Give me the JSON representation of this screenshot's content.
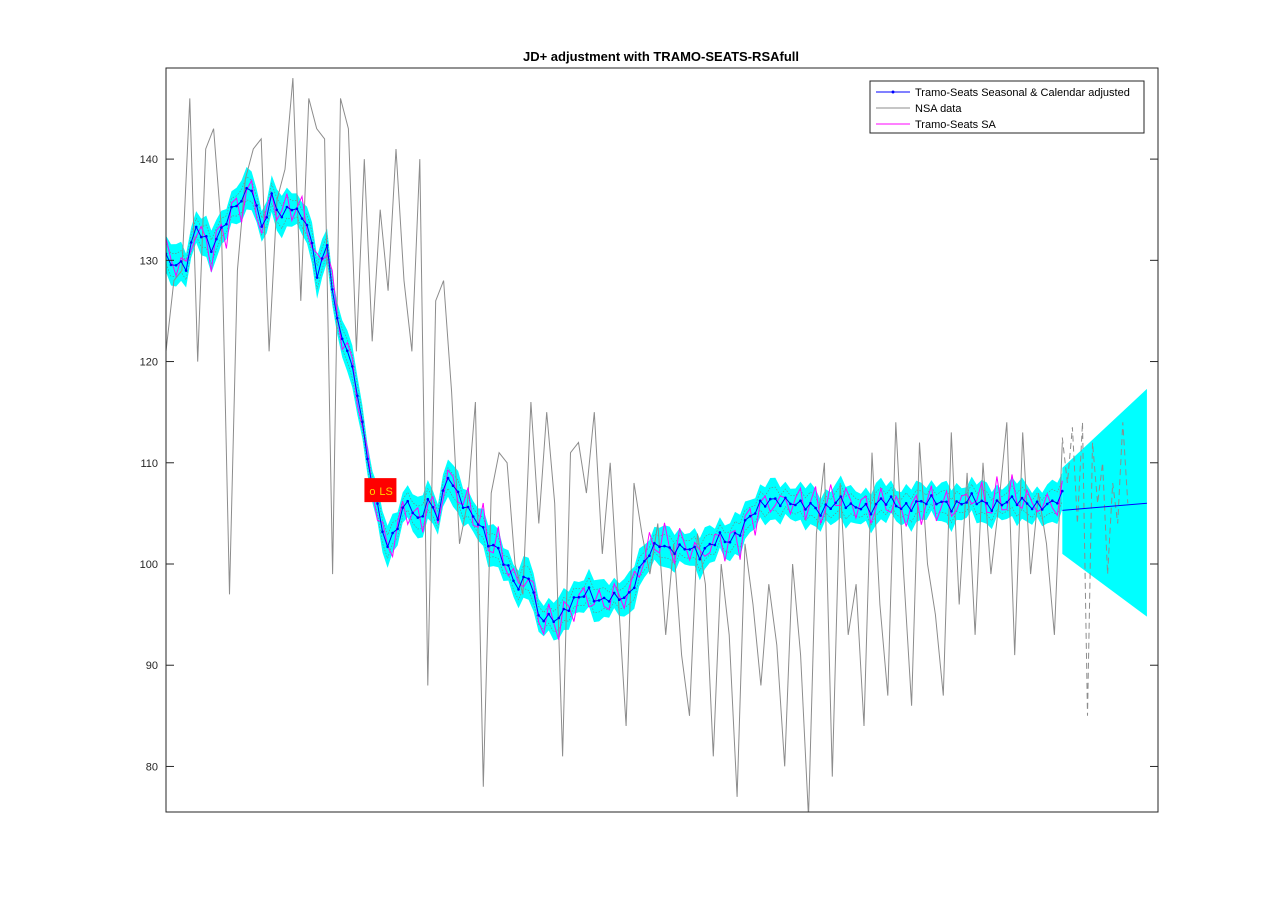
{
  "chart_data": {
    "type": "line",
    "title": "JD+ adjustment with TRAMO-SEATS-RSAfull",
    "xlabel": "",
    "ylabel": "",
    "ylim": [
      75.5,
      149
    ],
    "yticks": [
      80,
      90,
      100,
      110,
      120,
      130,
      140
    ],
    "xlim": [
      0,
      197
    ],
    "grid": false,
    "legend_position": "top-right",
    "n_observations": 179,
    "forecast_horizon": 12,
    "series": [
      {
        "name": "Tramo-Seats Seasonal & Calendar adjusted",
        "color": "#0000ff",
        "style": "solid-dot",
        "anchors": [
          [
            0,
            130.4
          ],
          [
            4,
            129.3
          ],
          [
            6,
            133
          ],
          [
            9,
            131.5
          ],
          [
            12,
            134
          ],
          [
            15,
            135.8
          ],
          [
            17,
            137.5
          ],
          [
            19,
            133.5
          ],
          [
            21,
            136
          ],
          [
            23,
            134
          ],
          [
            25,
            135.5
          ],
          [
            28,
            134
          ],
          [
            30,
            128.5
          ],
          [
            32,
            131
          ],
          [
            34,
            124
          ],
          [
            36,
            121.5
          ],
          [
            38,
            117
          ],
          [
            40,
            110
          ],
          [
            42,
            105.5
          ],
          [
            44,
            102
          ],
          [
            46,
            104
          ],
          [
            48,
            106
          ],
          [
            50,
            104
          ],
          [
            52,
            106.5
          ],
          [
            54,
            105
          ],
          [
            56,
            108.5
          ],
          [
            58,
            106.5
          ],
          [
            60,
            105.5
          ],
          [
            62,
            104.5
          ],
          [
            64,
            102
          ],
          [
            66,
            101
          ],
          [
            68,
            99.5
          ],
          [
            70,
            98
          ],
          [
            72,
            99
          ],
          [
            74,
            94.5
          ],
          [
            76,
            94.5
          ],
          [
            78,
            95
          ],
          [
            80,
            96
          ],
          [
            82,
            96.5
          ],
          [
            84,
            97
          ],
          [
            86,
            96.5
          ],
          [
            88,
            97
          ],
          [
            90,
            96.5
          ],
          [
            92,
            96.5
          ],
          [
            94,
            99.5
          ],
          [
            96,
            101.5
          ],
          [
            98,
            102
          ],
          [
            100,
            101
          ],
          [
            102,
            101.5
          ],
          [
            104,
            102
          ],
          [
            106,
            101
          ],
          [
            108,
            101.5
          ],
          [
            110,
            102.5
          ],
          [
            112,
            102.5
          ],
          [
            114,
            103.5
          ],
          [
            116,
            104.5
          ],
          [
            118,
            105.5
          ],
          [
            120,
            106.5
          ],
          [
            122,
            106.5
          ],
          [
            124,
            106
          ],
          [
            126,
            105.5
          ],
          [
            128,
            105.8
          ],
          [
            130,
            105.5
          ],
          [
            132,
            105.8
          ],
          [
            134,
            106
          ],
          [
            136,
            105.5
          ],
          [
            138,
            106
          ],
          [
            140,
            105.5
          ],
          [
            142,
            106
          ],
          [
            144,
            106
          ],
          [
            146,
            105.8
          ],
          [
            148,
            106
          ],
          [
            150,
            106
          ],
          [
            152,
            106
          ],
          [
            154,
            106.2
          ],
          [
            156,
            106
          ],
          [
            158,
            106
          ],
          [
            160,
            106.2
          ],
          [
            162,
            106
          ],
          [
            164,
            106
          ],
          [
            166,
            106.2
          ],
          [
            168,
            106
          ],
          [
            170,
            106
          ],
          [
            172,
            106
          ],
          [
            174,
            106
          ],
          [
            176,
            105.8
          ],
          [
            178,
            106.5
          ]
        ],
        "wiggle": 0.8
      },
      {
        "name": "NSA data",
        "color": "#8c8c8c",
        "style": "solid",
        "anchors": [
          [
            0,
            121
          ],
          [
            1,
            128
          ],
          [
            2,
            129
          ],
          [
            3,
            146
          ],
          [
            4,
            120
          ],
          [
            5,
            141
          ],
          [
            6,
            143
          ],
          [
            7,
            133
          ],
          [
            8,
            97
          ],
          [
            9,
            129
          ],
          [
            10,
            138
          ],
          [
            11,
            141
          ],
          [
            12,
            142
          ],
          [
            13,
            121
          ],
          [
            14,
            136
          ],
          [
            15,
            139
          ],
          [
            16,
            148
          ],
          [
            17,
            126
          ],
          [
            18,
            146
          ],
          [
            19,
            143
          ],
          [
            20,
            142
          ],
          [
            21,
            99
          ],
          [
            22,
            146
          ],
          [
            23,
            143
          ],
          [
            24,
            121
          ],
          [
            25,
            140
          ],
          [
            26,
            122
          ],
          [
            27,
            135
          ],
          [
            28,
            127
          ],
          [
            29,
            141
          ],
          [
            30,
            128
          ],
          [
            31,
            121
          ],
          [
            32,
            140
          ],
          [
            33,
            88
          ],
          [
            34,
            126
          ],
          [
            35,
            128
          ],
          [
            36,
            117
          ],
          [
            37,
            102
          ],
          [
            38,
            106
          ],
          [
            39,
            116
          ],
          [
            40,
            78
          ],
          [
            41,
            107
          ],
          [
            42,
            111
          ],
          [
            43,
            110
          ],
          [
            44,
            100
          ],
          [
            45,
            97
          ],
          [
            46,
            116
          ],
          [
            47,
            104
          ],
          [
            48,
            115
          ],
          [
            49,
            106
          ],
          [
            50,
            81
          ],
          [
            51,
            111
          ],
          [
            52,
            112
          ],
          [
            53,
            107
          ],
          [
            54,
            115
          ],
          [
            55,
            101
          ],
          [
            56,
            110
          ],
          [
            57,
            97
          ],
          [
            58,
            84
          ],
          [
            59,
            108
          ],
          [
            60,
            103
          ],
          [
            61,
            99
          ],
          [
            62,
            104
          ],
          [
            63,
            93
          ],
          [
            64,
            102
          ],
          [
            65,
            91
          ],
          [
            66,
            85
          ],
          [
            67,
            103
          ],
          [
            68,
            98
          ],
          [
            69,
            81
          ],
          [
            70,
            100
          ],
          [
            71,
            93
          ],
          [
            72,
            77
          ],
          [
            73,
            102
          ],
          [
            74,
            96
          ],
          [
            75,
            88
          ],
          [
            76,
            98
          ],
          [
            77,
            92
          ],
          [
            78,
            80
          ],
          [
            79,
            100
          ],
          [
            80,
            91
          ],
          [
            81,
            75
          ],
          [
            82,
            103
          ],
          [
            83,
            110
          ],
          [
            84,
            79
          ],
          [
            85,
            108
          ],
          [
            86,
            93
          ],
          [
            87,
            98
          ],
          [
            88,
            84
          ],
          [
            89,
            111
          ],
          [
            90,
            96
          ],
          [
            91,
            87
          ],
          [
            92,
            114
          ],
          [
            93,
            99
          ],
          [
            94,
            86
          ],
          [
            95,
            112
          ],
          [
            96,
            100
          ],
          [
            97,
            95
          ],
          [
            98,
            87
          ],
          [
            99,
            113
          ],
          [
            100,
            96
          ],
          [
            101,
            109
          ],
          [
            102,
            93
          ],
          [
            103,
            110
          ],
          [
            104,
            99
          ],
          [
            105,
            106
          ],
          [
            106,
            114
          ],
          [
            107,
            91
          ],
          [
            108,
            113
          ],
          [
            109,
            99
          ],
          [
            110,
            107
          ],
          [
            111,
            102
          ],
          [
            112,
            93
          ],
          [
            113,
            112
          ]
        ],
        "wiggle": 0
      },
      {
        "name": "Tramo-Seats SA",
        "color": "#ff00ff",
        "style": "solid",
        "anchors": [
          [
            0,
            130
          ],
          [
            4,
            129
          ],
          [
            6,
            133
          ],
          [
            9,
            131
          ],
          [
            12,
            134
          ],
          [
            15,
            136
          ],
          [
            17,
            139
          ],
          [
            19,
            133
          ],
          [
            21,
            137
          ],
          [
            23,
            134
          ],
          [
            25,
            136
          ],
          [
            28,
            134
          ],
          [
            30,
            128
          ],
          [
            32,
            131
          ],
          [
            34,
            124
          ],
          [
            36,
            121
          ],
          [
            38,
            117
          ],
          [
            40,
            110
          ],
          [
            42,
            105
          ],
          [
            44,
            101
          ],
          [
            46,
            104
          ],
          [
            48,
            106
          ],
          [
            50,
            104
          ],
          [
            52,
            107
          ],
          [
            54,
            105
          ],
          [
            56,
            109
          ],
          [
            58,
            106
          ],
          [
            60,
            105
          ],
          [
            62,
            104
          ],
          [
            64,
            101
          ],
          [
            66,
            101
          ],
          [
            68,
            99
          ],
          [
            70,
            97
          ],
          [
            72,
            99
          ],
          [
            74,
            94
          ],
          [
            76,
            94
          ],
          [
            78,
            95
          ],
          [
            80,
            96
          ],
          [
            82,
            96
          ],
          [
            84,
            97
          ],
          [
            86,
            96
          ],
          [
            88,
            97
          ],
          [
            90,
            96
          ],
          [
            92,
            96
          ],
          [
            94,
            99
          ],
          [
            96,
            101
          ],
          [
            98,
            102
          ],
          [
            100,
            101
          ],
          [
            102,
            101
          ],
          [
            104,
            102
          ],
          [
            106,
            101
          ],
          [
            108,
            101
          ],
          [
            110,
            102
          ],
          [
            112,
            103
          ],
          [
            114,
            104
          ],
          [
            116,
            104
          ],
          [
            118,
            105
          ],
          [
            120,
            106
          ],
          [
            122,
            107
          ],
          [
            124,
            106
          ],
          [
            126,
            105
          ],
          [
            128,
            106
          ],
          [
            130,
            105
          ],
          [
            132,
            106
          ],
          [
            134,
            106
          ],
          [
            136,
            105
          ],
          [
            138,
            106
          ],
          [
            140,
            105
          ],
          [
            142,
            106
          ],
          [
            144,
            106
          ],
          [
            146,
            106
          ],
          [
            148,
            106
          ],
          [
            150,
            106
          ],
          [
            152,
            106
          ],
          [
            154,
            106
          ],
          [
            156,
            106
          ],
          [
            158,
            106
          ],
          [
            160,
            106
          ],
          [
            162,
            106
          ],
          [
            164,
            106
          ],
          [
            166,
            106
          ],
          [
            168,
            106
          ],
          [
            170,
            106
          ],
          [
            172,
            106
          ],
          [
            174,
            106
          ],
          [
            176,
            106
          ],
          [
            178,
            106
          ]
        ],
        "wiggle": 1.5
      }
    ],
    "outlier": {
      "x": 40,
      "y": 107.2,
      "type": "LS",
      "label": "LS",
      "marker_label": "o",
      "color": "#ff0000"
    }
  }
}
